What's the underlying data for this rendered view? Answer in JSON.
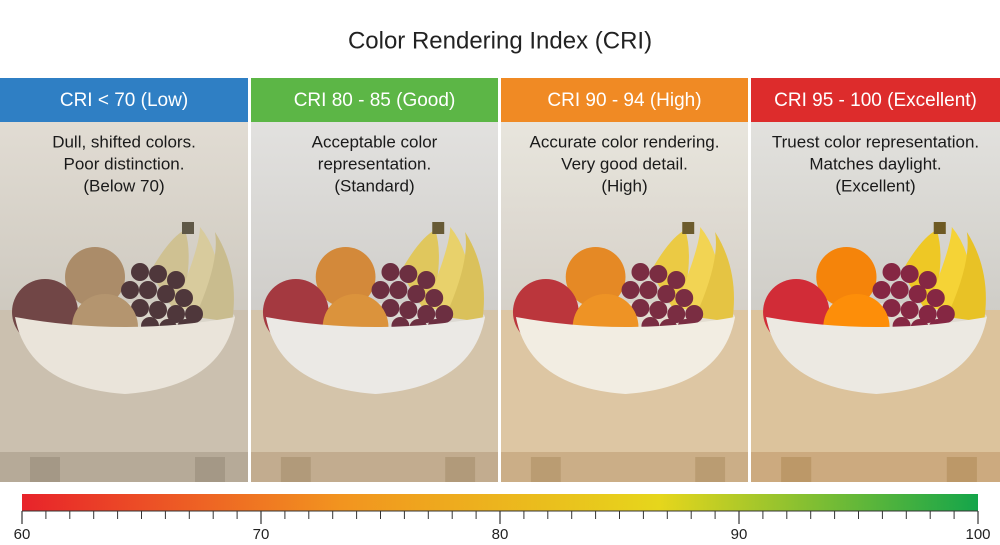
{
  "title": "Color Rendering Index (CRI)",
  "panels": [
    {
      "label": "CRI < 70 (Low)",
      "color": "#2f7fc4",
      "lines": [
        "Dull, shifted colors.",
        "Poor distinction.",
        "(Below 70)"
      ]
    },
    {
      "label": "CRI 80 - 85 (Good)",
      "color": "#5cb646",
      "lines": [
        "Acceptable color",
        "representation.",
        "(Standard)"
      ]
    },
    {
      "label": "CRI 90 - 94 (High)",
      "color": "#f08a24",
      "lines": [
        "Accurate color rendering.",
        "Very good detail.",
        "(High)"
      ]
    },
    {
      "label": "CRI 95 - 100 (Excellent)",
      "color": "#dd2c2c",
      "lines": [
        "Truest color representation.",
        "Matches daylight.",
        "(Excellent)"
      ]
    }
  ],
  "scale": {
    "range": [
      60,
      100
    ],
    "ticks": [
      60,
      70,
      80,
      90,
      100
    ],
    "minor_ticks": [
      61,
      62,
      63,
      64,
      65,
      66,
      67,
      68,
      69,
      71,
      72,
      73,
      74,
      75,
      76,
      77,
      78,
      79,
      81,
      82,
      83,
      84,
      85,
      86,
      87,
      88,
      89,
      91,
      92,
      93,
      94,
      95,
      96,
      97,
      98,
      99
    ],
    "gradient": [
      "#e8232a",
      "#f2941f",
      "#e6d61c",
      "#14a54a"
    ]
  }
}
